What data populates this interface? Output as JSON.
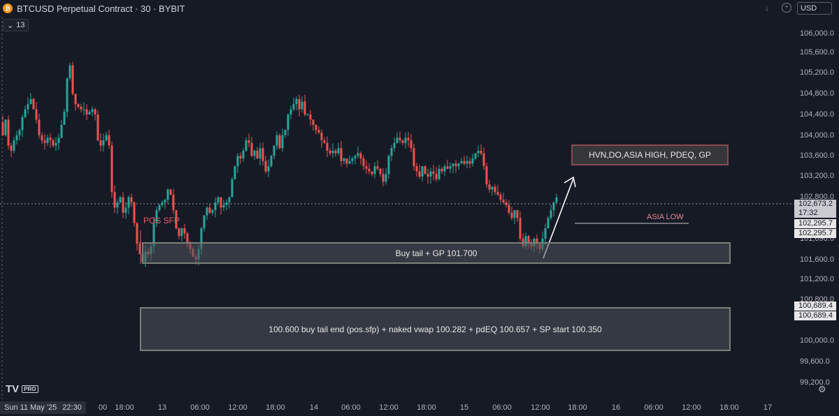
{
  "header": {
    "coin_symbol": "₿",
    "title": "BTCUSD Perpetual Contract · 30 · BYBIT",
    "interval_badge": "13",
    "currency": "USD",
    "icons": [
      "bitcoin-icon",
      "chevron-down-icon",
      "plus-icon"
    ]
  },
  "price_axis": {
    "ticks": [
      "106,000.0",
      "105,600.0",
      "105,200.0",
      "104,800.0",
      "104,400.0",
      "104,000.0",
      "103,600.0",
      "103,200.0",
      "102,800.0",
      "101,600.0",
      "101,200.0",
      "100,800.0",
      "100,000.0",
      "99,600.0",
      "99,200.0"
    ],
    "current_price": "102,673.2",
    "countdown": "17:32",
    "tag_a1": "102,295.7",
    "tag_a2": "102,295.7",
    "tag_b1": "100,689.4",
    "tag_b2": "100,689.4",
    "partial_label": "101,690.0"
  },
  "time_axis": {
    "date_tag": "Sun 11 May '25",
    "time_tag": "22:30",
    "labels": [
      "00",
      "18:00",
      "13",
      "06:00",
      "12:00",
      "18:00",
      "14",
      "06:00",
      "12:00",
      "18:00",
      "15",
      "06:00",
      "12:00",
      "18:00",
      "16",
      "06:00",
      "12:00",
      "18:00",
      "17"
    ]
  },
  "annotations": {
    "hvn_box": "HVN,DO,ASIA HIGH, PDEQ, GP",
    "asia_low": "ASIA LOW",
    "buy_tail": "Buy tail + GP 101.700",
    "pos_sfp": "POS SFP",
    "lower_zone": "100.600 buy tail end (pos.sfp) + naked vwap 100.282 + pdEQ 100.657 + SP start 100.350"
  },
  "logo": {
    "mark": "TV",
    "badge": "PRO"
  },
  "colors": {
    "background": "#161a25",
    "up": "#26a69a",
    "down": "#ef5350",
    "current_line": "#9598a1"
  },
  "chart_data": {
    "type": "candlestick",
    "symbol": "BTCUSD Perpetual Contract",
    "timeframe": "30",
    "exchange": "BYBIT",
    "x_range": [
      "Sun 11 May '25 22:30",
      "17"
    ],
    "ylim": [
      99000,
      106300
    ],
    "current_price": 102673.2,
    "path": [
      [
        0,
        104250
      ],
      [
        4,
        104000
      ],
      [
        8,
        104300
      ],
      [
        12,
        103800
      ],
      [
        16,
        103700
      ],
      [
        20,
        103900
      ],
      [
        24,
        104000
      ],
      [
        28,
        104100
      ],
      [
        32,
        104350
      ],
      [
        36,
        104500
      ],
      [
        40,
        104600
      ],
      [
        44,
        104700
      ],
      [
        48,
        104500
      ],
      [
        52,
        104300
      ],
      [
        56,
        104000
      ],
      [
        60,
        103900
      ],
      [
        64,
        103850
      ],
      [
        68,
        103950
      ],
      [
        72,
        103900
      ],
      [
        76,
        103800
      ],
      [
        80,
        103850
      ],
      [
        84,
        103950
      ],
      [
        88,
        104200
      ],
      [
        92,
        104450
      ],
      [
        96,
        105100
      ],
      [
        100,
        105350
      ],
      [
        104,
        104800
      ],
      [
        108,
        104600
      ],
      [
        112,
        104550
      ],
      [
        116,
        104500
      ],
      [
        120,
        104500
      ],
      [
        124,
        104400
      ],
      [
        128,
        104450
      ],
      [
        132,
        104500
      ],
      [
        136,
        104400
      ],
      [
        140,
        103900
      ],
      [
        144,
        103800
      ],
      [
        148,
        103900
      ],
      [
        152,
        104000
      ],
      [
        156,
        103800
      ],
      [
        160,
        102900
      ],
      [
        164,
        102600
      ],
      [
        168,
        102700
      ],
      [
        172,
        102800
      ],
      [
        176,
        102500
      ],
      [
        180,
        102600
      ],
      [
        184,
        102800
      ],
      [
        188,
        102700
      ],
      [
        192,
        102300
      ],
      [
        196,
        101900
      ],
      [
        200,
        101700
      ],
      [
        204,
        101550
      ],
      [
        208,
        101750
      ],
      [
        212,
        101700
      ],
      [
        216,
        101850
      ],
      [
        220,
        102300
      ],
      [
        224,
        102550
      ],
      [
        228,
        102650
      ],
      [
        232,
        102700
      ],
      [
        236,
        102750
      ],
      [
        240,
        102950
      ],
      [
        244,
        102850
      ],
      [
        248,
        102550
      ],
      [
        252,
        102200
      ],
      [
        256,
        102050
      ],
      [
        260,
        102200
      ],
      [
        264,
        102100
      ],
      [
        268,
        101900
      ],
      [
        272,
        101800
      ],
      [
        276,
        101650
      ],
      [
        280,
        101600
      ],
      [
        284,
        101800
      ],
      [
        288,
        102200
      ],
      [
        292,
        102450
      ],
      [
        296,
        102600
      ],
      [
        300,
        102500
      ],
      [
        304,
        102550
      ],
      [
        308,
        102700
      ],
      [
        312,
        102800
      ],
      [
        316,
        102600
      ],
      [
        320,
        102650
      ],
      [
        324,
        102700
      ],
      [
        328,
        102800
      ],
      [
        332,
        103150
      ],
      [
        336,
        103400
      ],
      [
        340,
        103600
      ],
      [
        344,
        103550
      ],
      [
        348,
        103700
      ],
      [
        352,
        103900
      ],
      [
        356,
        103850
      ],
      [
        360,
        103600
      ],
      [
        364,
        103700
      ],
      [
        368,
        103550
      ],
      [
        372,
        103750
      ],
      [
        376,
        103500
      ],
      [
        380,
        103300
      ],
      [
        384,
        103400
      ],
      [
        388,
        103600
      ],
      [
        392,
        103800
      ],
      [
        396,
        104000
      ],
      [
        400,
        103750
      ],
      [
        404,
        104000
      ],
      [
        408,
        104100
      ],
      [
        412,
        104400
      ],
      [
        416,
        104500
      ],
      [
        420,
        104600
      ],
      [
        424,
        104700
      ],
      [
        428,
        104500
      ],
      [
        432,
        104650
      ],
      [
        436,
        104400
      ],
      [
        440,
        104400
      ],
      [
        444,
        104300
      ],
      [
        448,
        104200
      ],
      [
        452,
        104100
      ],
      [
        456,
        104050
      ],
      [
        460,
        103900
      ],
      [
        464,
        103850
      ],
      [
        468,
        103700
      ],
      [
        472,
        103650
      ],
      [
        476,
        103700
      ],
      [
        480,
        103650
      ],
      [
        484,
        103750
      ],
      [
        488,
        103500
      ],
      [
        492,
        103550
      ],
      [
        496,
        103450
      ],
      [
        500,
        103500
      ],
      [
        504,
        103550
      ],
      [
        508,
        103600
      ],
      [
        512,
        103650
      ],
      [
        516,
        103550
      ],
      [
        520,
        103400
      ],
      [
        524,
        103350
      ],
      [
        528,
        103300
      ],
      [
        532,
        103250
      ],
      [
        536,
        103400
      ],
      [
        540,
        103350
      ],
      [
        544,
        103250
      ],
      [
        548,
        103100
      ],
      [
        552,
        103250
      ],
      [
        556,
        103600
      ],
      [
        560,
        103750
      ],
      [
        564,
        103850
      ],
      [
        568,
        103950
      ],
      [
        572,
        103900
      ],
      [
        576,
        103850
      ],
      [
        580,
        103950
      ],
      [
        584,
        103900
      ],
      [
        588,
        103750
      ],
      [
        592,
        103400
      ],
      [
        596,
        103300
      ],
      [
        600,
        103200
      ],
      [
        604,
        103400
      ],
      [
        608,
        103250
      ],
      [
        612,
        103200
      ],
      [
        616,
        103300
      ],
      [
        620,
        103250
      ],
      [
        624,
        103150
      ],
      [
        628,
        103350
      ],
      [
        632,
        103300
      ],
      [
        636,
        103400
      ],
      [
        640,
        103350
      ],
      [
        644,
        103400
      ],
      [
        648,
        103450
      ],
      [
        652,
        103400
      ],
      [
        656,
        103450
      ],
      [
        660,
        103500
      ],
      [
        664,
        103450
      ],
      [
        668,
        103500
      ],
      [
        672,
        103450
      ],
      [
        676,
        103550
      ],
      [
        680,
        103650
      ],
      [
        684,
        103700
      ],
      [
        688,
        103650
      ],
      [
        692,
        103400
      ],
      [
        696,
        103050
      ],
      [
        700,
        102950
      ],
      [
        704,
        103000
      ],
      [
        708,
        102900
      ],
      [
        712,
        102850
      ],
      [
        716,
        102750
      ],
      [
        720,
        102700
      ],
      [
        724,
        102650
      ],
      [
        728,
        102500
      ],
      [
        732,
        102400
      ],
      [
        736,
        102550
      ],
      [
        740,
        102400
      ],
      [
        744,
        102000
      ],
      [
        748,
        101850
      ],
      [
        752,
        102050
      ],
      [
        756,
        101900
      ],
      [
        760,
        101850
      ],
      [
        764,
        102000
      ],
      [
        768,
        101900
      ],
      [
        772,
        101800
      ],
      [
        776,
        102000
      ],
      [
        780,
        102200
      ],
      [
        784,
        102400
      ],
      [
        788,
        102550
      ],
      [
        792,
        102700
      ],
      [
        796,
        102800
      ]
    ],
    "annotations": [
      "HVN,DO,ASIA HIGH, PDEQ, GP",
      "ASIA LOW",
      "Buy tail + GP 101.700",
      "POS SFP",
      "100.600 buy tail end (pos.sfp) + naked vwap 100.282 + pdEQ 100.657 + SP start 100.350"
    ]
  }
}
